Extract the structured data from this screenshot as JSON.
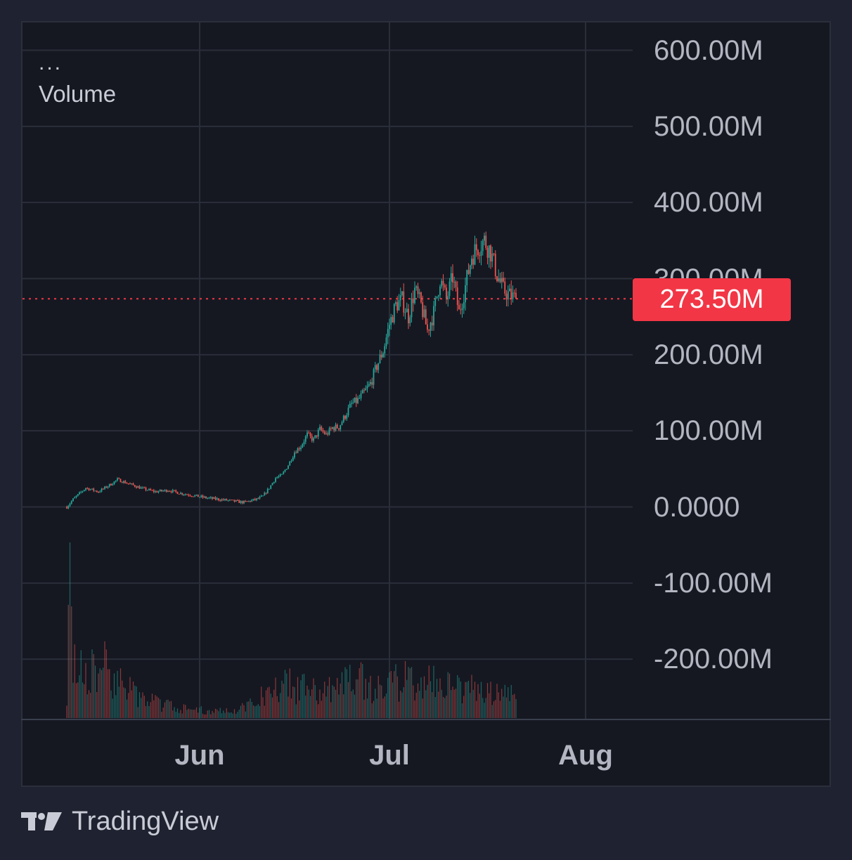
{
  "legend": {
    "dots": "...",
    "indicator": "Volume"
  },
  "brand": {
    "name": "TradingView",
    "icon": "tradingview-logo-icon"
  },
  "colors": {
    "up": "#26a69a",
    "down": "#ef5350",
    "price_line": "#f23645",
    "grid": "#2a2e39",
    "background": "#151821"
  },
  "chart_data": {
    "type": "candlestick",
    "last_price": 273.5,
    "last_price_label": "273.50M",
    "y_unit": "M",
    "y_ticks": [
      {
        "value": 600,
        "label": "600.00M"
      },
      {
        "value": 500,
        "label": "500.00M"
      },
      {
        "value": 400,
        "label": "400.00M"
      },
      {
        "value": 300,
        "label": "300.00M"
      },
      {
        "value": 200,
        "label": "200.00M"
      },
      {
        "value": 100,
        "label": "100.00M"
      },
      {
        "value": 0,
        "label": "0.0000"
      },
      {
        "value": -100,
        "label": "-100.00M"
      },
      {
        "value": -200,
        "label": "-200.00M"
      }
    ],
    "x_ticks": [
      {
        "day": 0,
        "label": "Jun"
      },
      {
        "day": 30,
        "label": "Jul"
      },
      {
        "day": 61,
        "label": "Aug"
      }
    ],
    "ylim": [
      -280,
      640
    ],
    "xlim": [
      -28,
      68
    ],
    "grid": true,
    "series_points": [
      [
        -21,
        0
      ],
      [
        -20,
        10
      ],
      [
        -18,
        25
      ],
      [
        -16,
        20
      ],
      [
        -14,
        30
      ],
      [
        -13,
        36
      ],
      [
        -11,
        30
      ],
      [
        -9,
        24
      ],
      [
        -7,
        20
      ],
      [
        -5,
        22
      ],
      [
        -3,
        18
      ],
      [
        -1,
        15
      ],
      [
        1,
        12
      ],
      [
        3,
        10
      ],
      [
        5,
        8
      ],
      [
        7,
        6
      ],
      [
        9,
        10
      ],
      [
        10,
        14
      ],
      [
        11,
        25
      ],
      [
        12,
        38
      ],
      [
        13,
        42
      ],
      [
        14,
        55
      ],
      [
        15,
        72
      ],
      [
        16,
        80
      ],
      [
        17,
        95
      ],
      [
        18,
        88
      ],
      [
        19,
        102
      ],
      [
        20,
        95
      ],
      [
        21,
        104
      ],
      [
        22,
        105
      ],
      [
        23,
        120
      ],
      [
        24,
        135
      ],
      [
        25,
        140
      ],
      [
        26,
        150
      ],
      [
        27,
        162
      ],
      [
        28,
        185
      ],
      [
        29,
        205
      ],
      [
        30,
        240
      ],
      [
        31,
        265
      ],
      [
        32,
        272
      ],
      [
        33,
        250
      ],
      [
        34,
        285
      ],
      [
        35,
        265
      ],
      [
        36,
        232
      ],
      [
        37,
        255
      ],
      [
        38,
        300
      ],
      [
        39,
        272
      ],
      [
        40,
        302
      ],
      [
        41,
        255
      ],
      [
        42,
        290
      ],
      [
        43,
        330
      ],
      [
        44,
        342
      ],
      [
        45,
        350
      ],
      [
        46,
        335
      ],
      [
        47,
        305
      ],
      [
        48,
        285
      ],
      [
        49,
        278
      ],
      [
        50,
        273.5
      ]
    ],
    "volume_profile": [
      [
        -21,
        0.2
      ],
      [
        -20.5,
        1.0
      ],
      [
        -20,
        0.35
      ],
      [
        -18,
        0.3
      ],
      [
        -15,
        0.35
      ],
      [
        -13,
        0.28
      ],
      [
        -10,
        0.15
      ],
      [
        -6,
        0.1
      ],
      [
        -2,
        0.06
      ],
      [
        2,
        0.05
      ],
      [
        6,
        0.06
      ],
      [
        9,
        0.12
      ],
      [
        12,
        0.25
      ],
      [
        15,
        0.22
      ],
      [
        19,
        0.2
      ],
      [
        22,
        0.2
      ],
      [
        24,
        0.35
      ],
      [
        27,
        0.2
      ],
      [
        30,
        0.22
      ],
      [
        33,
        0.3
      ],
      [
        35,
        0.22
      ],
      [
        37,
        0.28
      ],
      [
        40,
        0.2
      ],
      [
        42,
        0.22
      ],
      [
        45,
        0.18
      ],
      [
        48,
        0.15
      ],
      [
        50,
        0.2
      ]
    ]
  }
}
